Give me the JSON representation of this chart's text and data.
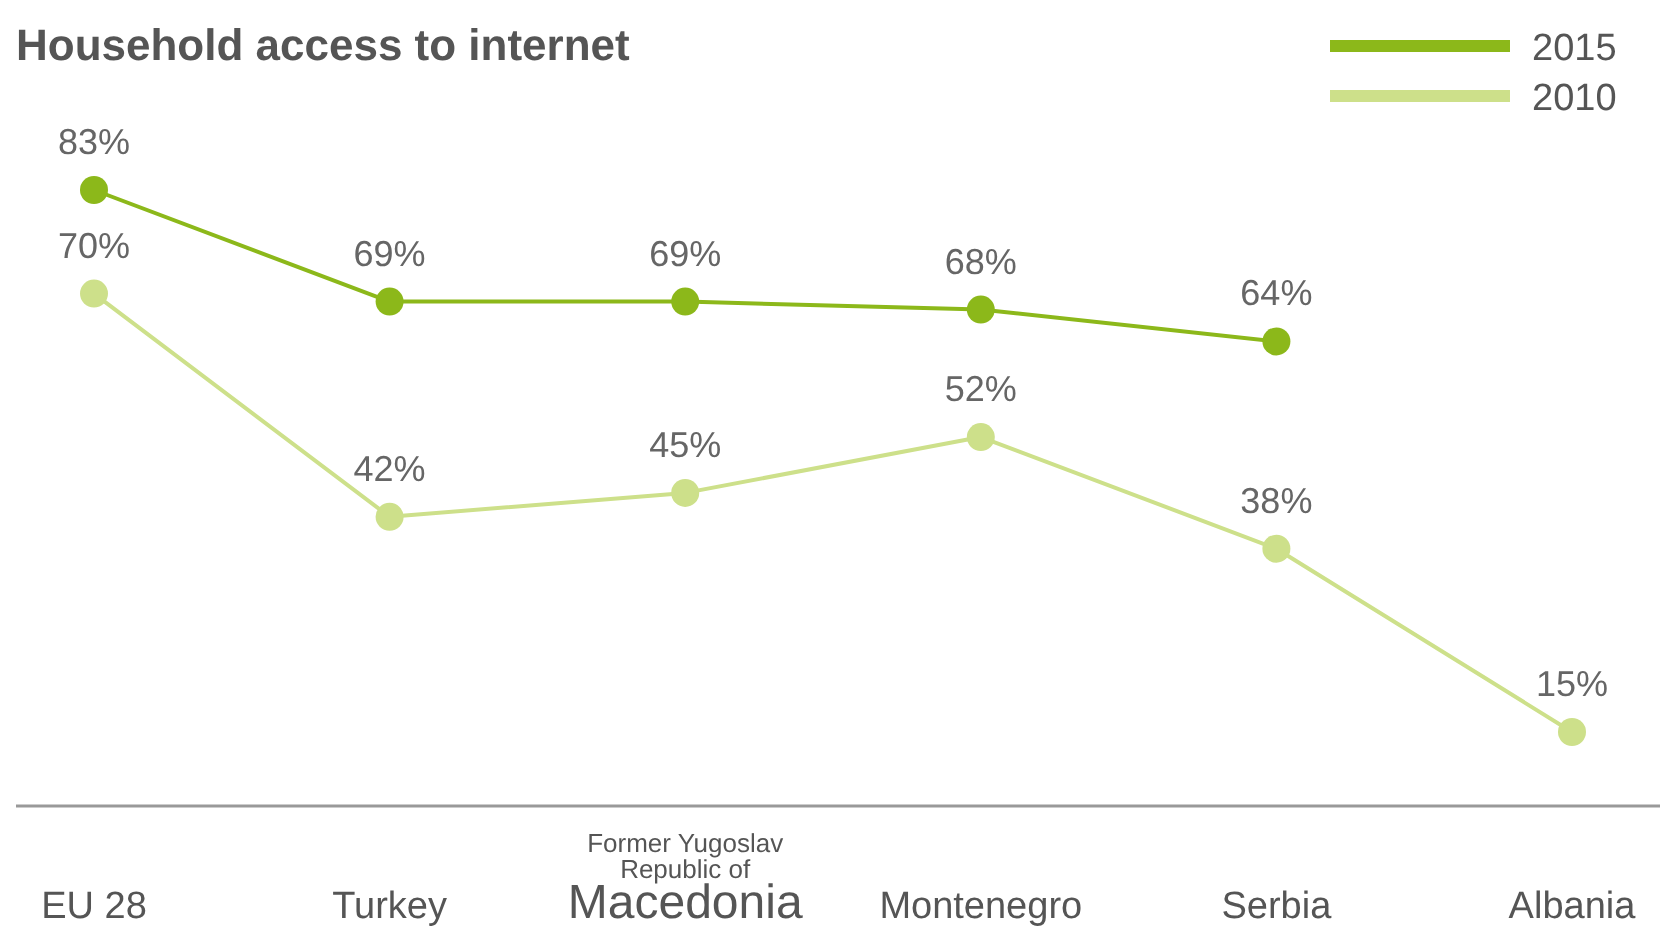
{
  "chart_data": {
    "type": "line",
    "title": "Household access to internet",
    "categories": [
      "EU 28",
      "Turkey",
      "Former Yugoslav\nRepublic of\nMacedonia",
      "Montenegro",
      "Serbia",
      "Albania"
    ],
    "series": [
      {
        "name": "2015",
        "color": "#8cb81a",
        "values": [
          83,
          69,
          69,
          68,
          64,
          null
        ],
        "value_labels": [
          "83%",
          "69%",
          "69%",
          "68%",
          "64%",
          null
        ]
      },
      {
        "name": "2010",
        "color": "#cde08a",
        "values": [
          70,
          42,
          45,
          52,
          38,
          15
        ],
        "value_labels": [
          "70%",
          "42%",
          "45%",
          "52%",
          "38%",
          "15%"
        ]
      }
    ],
    "tick_labels": "x",
    "marker": "circle",
    "line_style": "solid",
    "legend": "top right"
  }
}
